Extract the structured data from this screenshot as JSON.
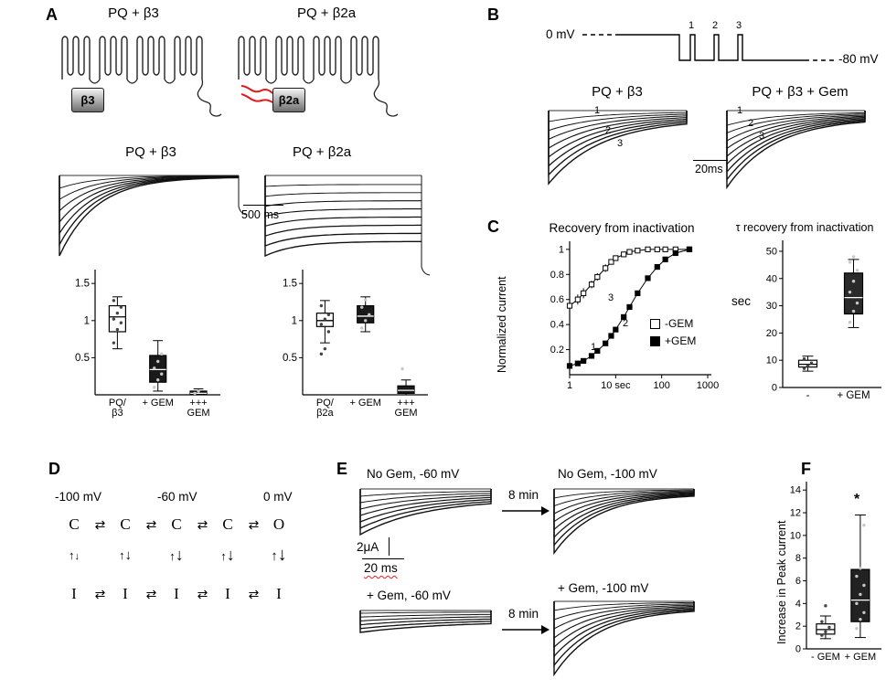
{
  "labels": {
    "A": "A",
    "B": "B",
    "C": "C",
    "D": "D",
    "E": "E",
    "F": "F"
  },
  "panelA": {
    "cartoon_left_title": "PQ + β3",
    "cartoon_right_title": "PQ + β2a",
    "beta3_tag": "β3",
    "beta2a_tag": "β2a",
    "trace_left_title": "PQ + β3",
    "trace_right_title": "PQ + β2a",
    "scale_label": "500 ms"
  },
  "panelB": {
    "v0": "0 mV",
    "v80": "-80 mV",
    "pulse_numbers": [
      "1",
      "2",
      "3"
    ],
    "left_title": "PQ + β3",
    "right_title": "PQ + β3 + Gem",
    "scale_label": "20ms"
  },
  "panelC": {
    "left_title": "Recovery from inactivation",
    "ylabel": "Normalized current",
    "legend_minus": "-GEM",
    "legend_plus": "+GEM",
    "curve_labels": [
      "1",
      "2",
      "3"
    ],
    "right_title": "τ recovery from inactivation",
    "right_ylabel": "sec"
  },
  "panelD": {
    "voltages": [
      "-100 mV",
      "-60 mV",
      "0 mV"
    ],
    "top_states": [
      "C",
      "C",
      "C",
      "C",
      "O"
    ],
    "bottom_states": [
      "I",
      "I",
      "I",
      "I",
      "I"
    ],
    "harpoon": "⇄",
    "up": "↑",
    "down": "↓"
  },
  "panelE": {
    "tl_title": "No Gem, -60 mV",
    "tr_title": "No Gem, -100 mV",
    "bl_title": "+ Gem, -60 mV",
    "br_title": "+ Gem, -100 mV",
    "arrow_label": "8 min",
    "scale_v": "2μA",
    "scale_h": "20 ms"
  },
  "panelF": {
    "ylabel": "Increase in Peak current",
    "sig": "*"
  },
  "chart_data": [
    {
      "id": "A_left_box",
      "type": "box",
      "panel": "A",
      "ylim": [
        0,
        1.65
      ],
      "yticks": [
        0.5,
        1,
        1.5
      ],
      "categories": [
        "PQ/\nβ3",
        "+ GEM",
        "+++\nGEM"
      ],
      "boxes": [
        {
          "lo": 0.62,
          "q1": 0.85,
          "med": 1.05,
          "q3": 1.2,
          "hi": 1.32,
          "fill": "#fff",
          "points": [
            0.7,
            0.88,
            0.97,
            1.02,
            1.1,
            1.18,
            1.27
          ]
        },
        {
          "lo": 0.05,
          "q1": 0.17,
          "med": 0.34,
          "q3": 0.53,
          "hi": 0.73,
          "fill": "#1a1a1a",
          "points": [
            0.1,
            0.2,
            0.28,
            0.36,
            0.45,
            0.55
          ]
        },
        {
          "lo": 0,
          "q1": 0.01,
          "med": 0.02,
          "q3": 0.05,
          "hi": 0.08,
          "fill": "#1a1a1a",
          "points": [
            0.02,
            0.05
          ]
        }
      ]
    },
    {
      "id": "A_right_box",
      "type": "box",
      "panel": "A",
      "ylim": [
        0,
        1.65
      ],
      "yticks": [
        0.5,
        1,
        1.5
      ],
      "categories": [
        "PQ/\nβ2a",
        "+ GEM",
        "+++\nGEM"
      ],
      "boxes": [
        {
          "lo": 0.7,
          "q1": 0.92,
          "med": 1.0,
          "q3": 1.1,
          "hi": 1.27,
          "fill": "#fff",
          "points": [
            0.55,
            0.62,
            0.85,
            0.95,
            1.02,
            1.08,
            1.2
          ]
        },
        {
          "lo": 0.85,
          "q1": 0.97,
          "med": 1.06,
          "q3": 1.2,
          "hi": 1.32,
          "fill": "#1a1a1a",
          "points": [
            0.9,
            1.0,
            1.08,
            1.18,
            1.28
          ]
        },
        {
          "lo": 0,
          "q1": 0.02,
          "med": 0.06,
          "q3": 0.12,
          "hi": 0.2,
          "fill": "#1a1a1a",
          "points": [
            0.35
          ]
        }
      ]
    },
    {
      "id": "C_recovery",
      "type": "line",
      "title": "Recovery from inactivation",
      "ylabel": "Normalized current",
      "xlabel_ticks": [
        "1",
        "10 sec",
        "100",
        "1000"
      ],
      "yticks": [
        0.2,
        0.4,
        0.6,
        0.8,
        1
      ],
      "xrange_log10": [
        0,
        3
      ],
      "legend": [
        "-GEM",
        "+GEM"
      ],
      "series": [
        {
          "name": "-GEM",
          "marker": "open-square",
          "x": [
            1,
            1.5,
            2,
            3,
            4,
            6,
            8,
            10,
            15,
            20,
            30,
            50,
            80,
            120,
            200,
            400
          ],
          "y": [
            0.55,
            0.6,
            0.65,
            0.72,
            0.78,
            0.85,
            0.9,
            0.93,
            0.96,
            0.98,
            0.99,
            1,
            1,
            1,
            1,
            1
          ],
          "err": [
            0.05,
            0.04,
            0.04,
            0.03,
            0.03,
            0.03,
            0.02,
            0.02,
            0.02,
            0.01,
            0.01,
            0.01,
            0.01,
            0.01,
            0.01,
            0.01
          ]
        },
        {
          "name": "+GEM",
          "marker": "filled-square",
          "x": [
            1,
            1.5,
            2,
            3,
            4,
            6,
            8,
            10,
            15,
            20,
            30,
            50,
            80,
            120,
            200,
            400
          ],
          "y": [
            0.07,
            0.09,
            0.11,
            0.15,
            0.19,
            0.25,
            0.31,
            0.36,
            0.46,
            0.54,
            0.65,
            0.77,
            0.86,
            0.92,
            0.97,
            1
          ]
        }
      ]
    },
    {
      "id": "C_tau_box",
      "type": "box",
      "title": "τ recovery from inactivation",
      "ylabel": "sec",
      "ylim": [
        0,
        53
      ],
      "yticks": [
        0,
        10,
        20,
        30,
        40,
        50
      ],
      "categories": [
        "-",
        "+ GEM"
      ],
      "boxes": [
        {
          "lo": 6,
          "q1": 7.5,
          "med": 8.5,
          "q3": 10,
          "hi": 11.5,
          "fill": "#fff",
          "points": [
            7,
            8,
            9,
            10.5
          ]
        },
        {
          "lo": 22,
          "q1": 27,
          "med": 33,
          "q3": 42,
          "hi": 47,
          "fill": "#2a2a2a",
          "points": [
            24,
            28,
            31,
            35,
            39,
            43,
            46,
            48
          ]
        }
      ]
    },
    {
      "id": "F_box",
      "type": "box",
      "ylabel": "Increase in Peak current",
      "significance": "*",
      "ylim": [
        0,
        14.5
      ],
      "yticks": [
        0,
        2,
        4,
        6,
        8,
        10,
        12,
        14
      ],
      "categories": [
        "- GEM",
        "+ GEM"
      ],
      "boxes": [
        {
          "lo": 0.9,
          "q1": 1.3,
          "med": 1.7,
          "q3": 2.2,
          "hi": 2.9,
          "fill": "#fff",
          "points": [
            1.2,
            1.5,
            1.9,
            2.4,
            3.8
          ]
        },
        {
          "lo": 1,
          "q1": 2.4,
          "med": 4.3,
          "q3": 7,
          "hi": 11.8,
          "fill": "#222",
          "points": [
            1.8,
            2.6,
            3.2,
            4,
            4.8,
            5.6,
            6.4,
            7.1,
            10.9
          ]
        }
      ]
    }
  ]
}
